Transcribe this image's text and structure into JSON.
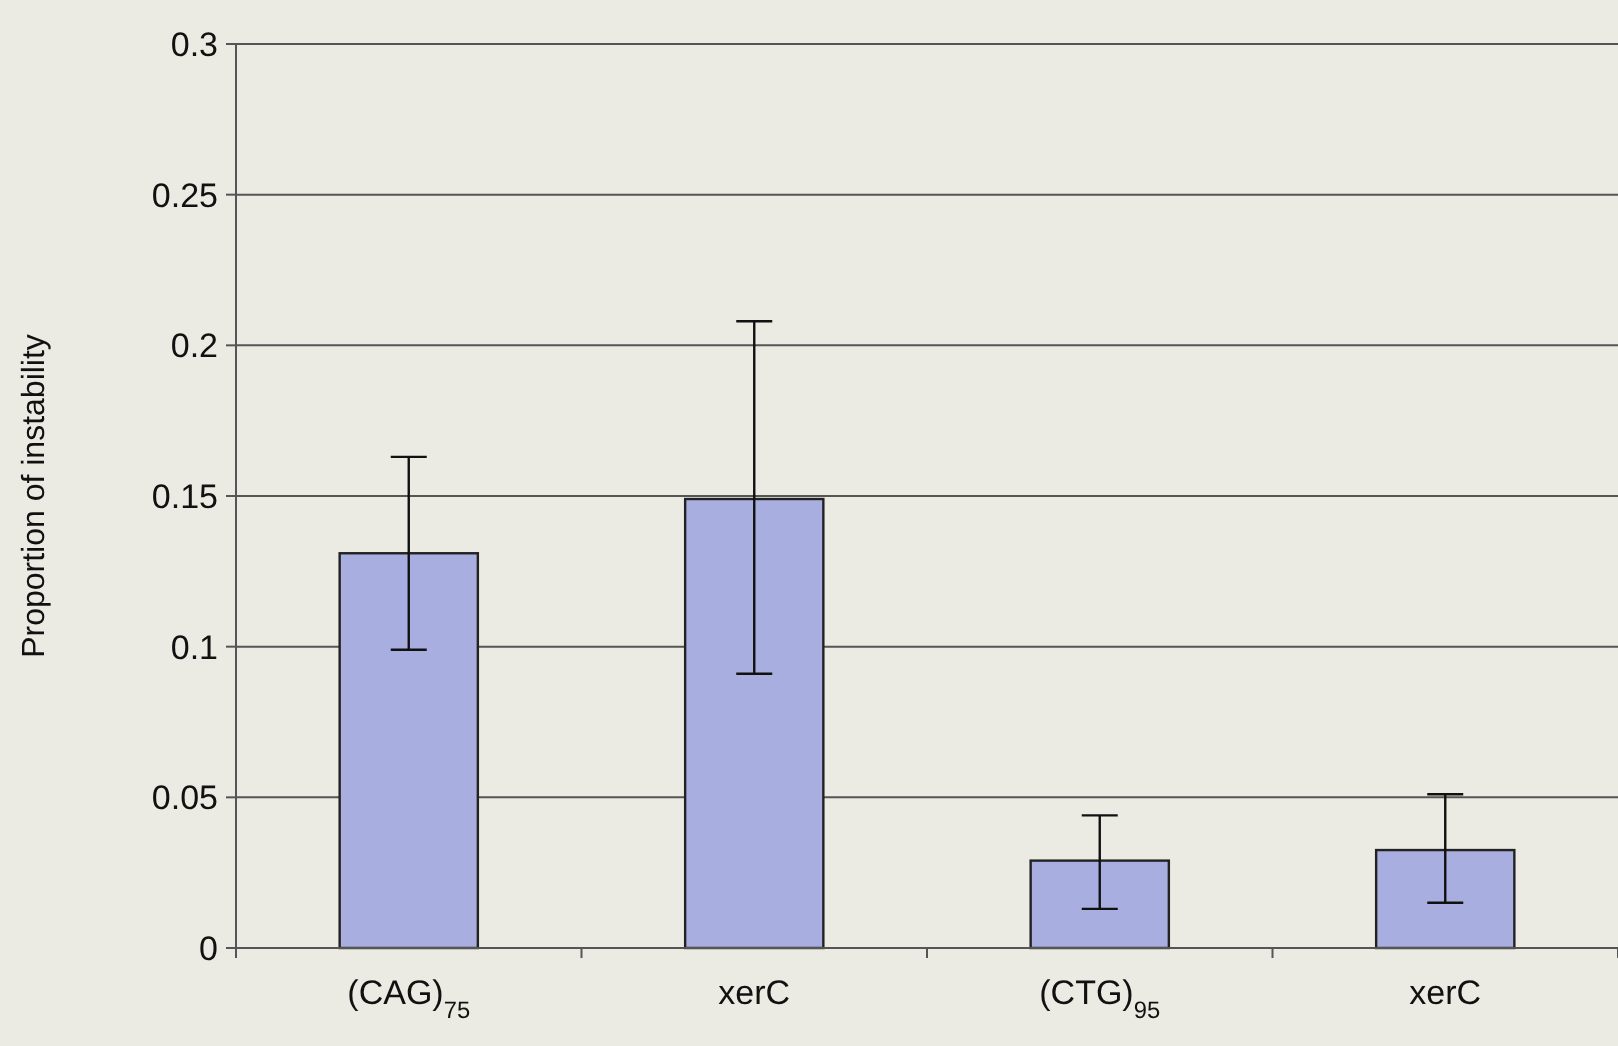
{
  "chart_data": {
    "type": "bar",
    "ylabel": "Proportion of instability",
    "categories": [
      "(CAG)$_{75}$",
      "xerC",
      "(CTG)$_{95}$",
      "xerC"
    ],
    "values": [
      0.131,
      0.149,
      0.029,
      0.0325
    ],
    "errors": [
      [
        0.099,
        0.163
      ],
      [
        0.091,
        0.208
      ],
      [
        0.013,
        0.044
      ],
      [
        0.015,
        0.051
      ]
    ],
    "color": "#a9aee0",
    "ylim": [
      0,
      0.3
    ],
    "yticks": [
      0,
      0.05,
      0.1,
      0.15,
      0.2,
      0.25,
      0.3
    ],
    "grid": "y"
  }
}
